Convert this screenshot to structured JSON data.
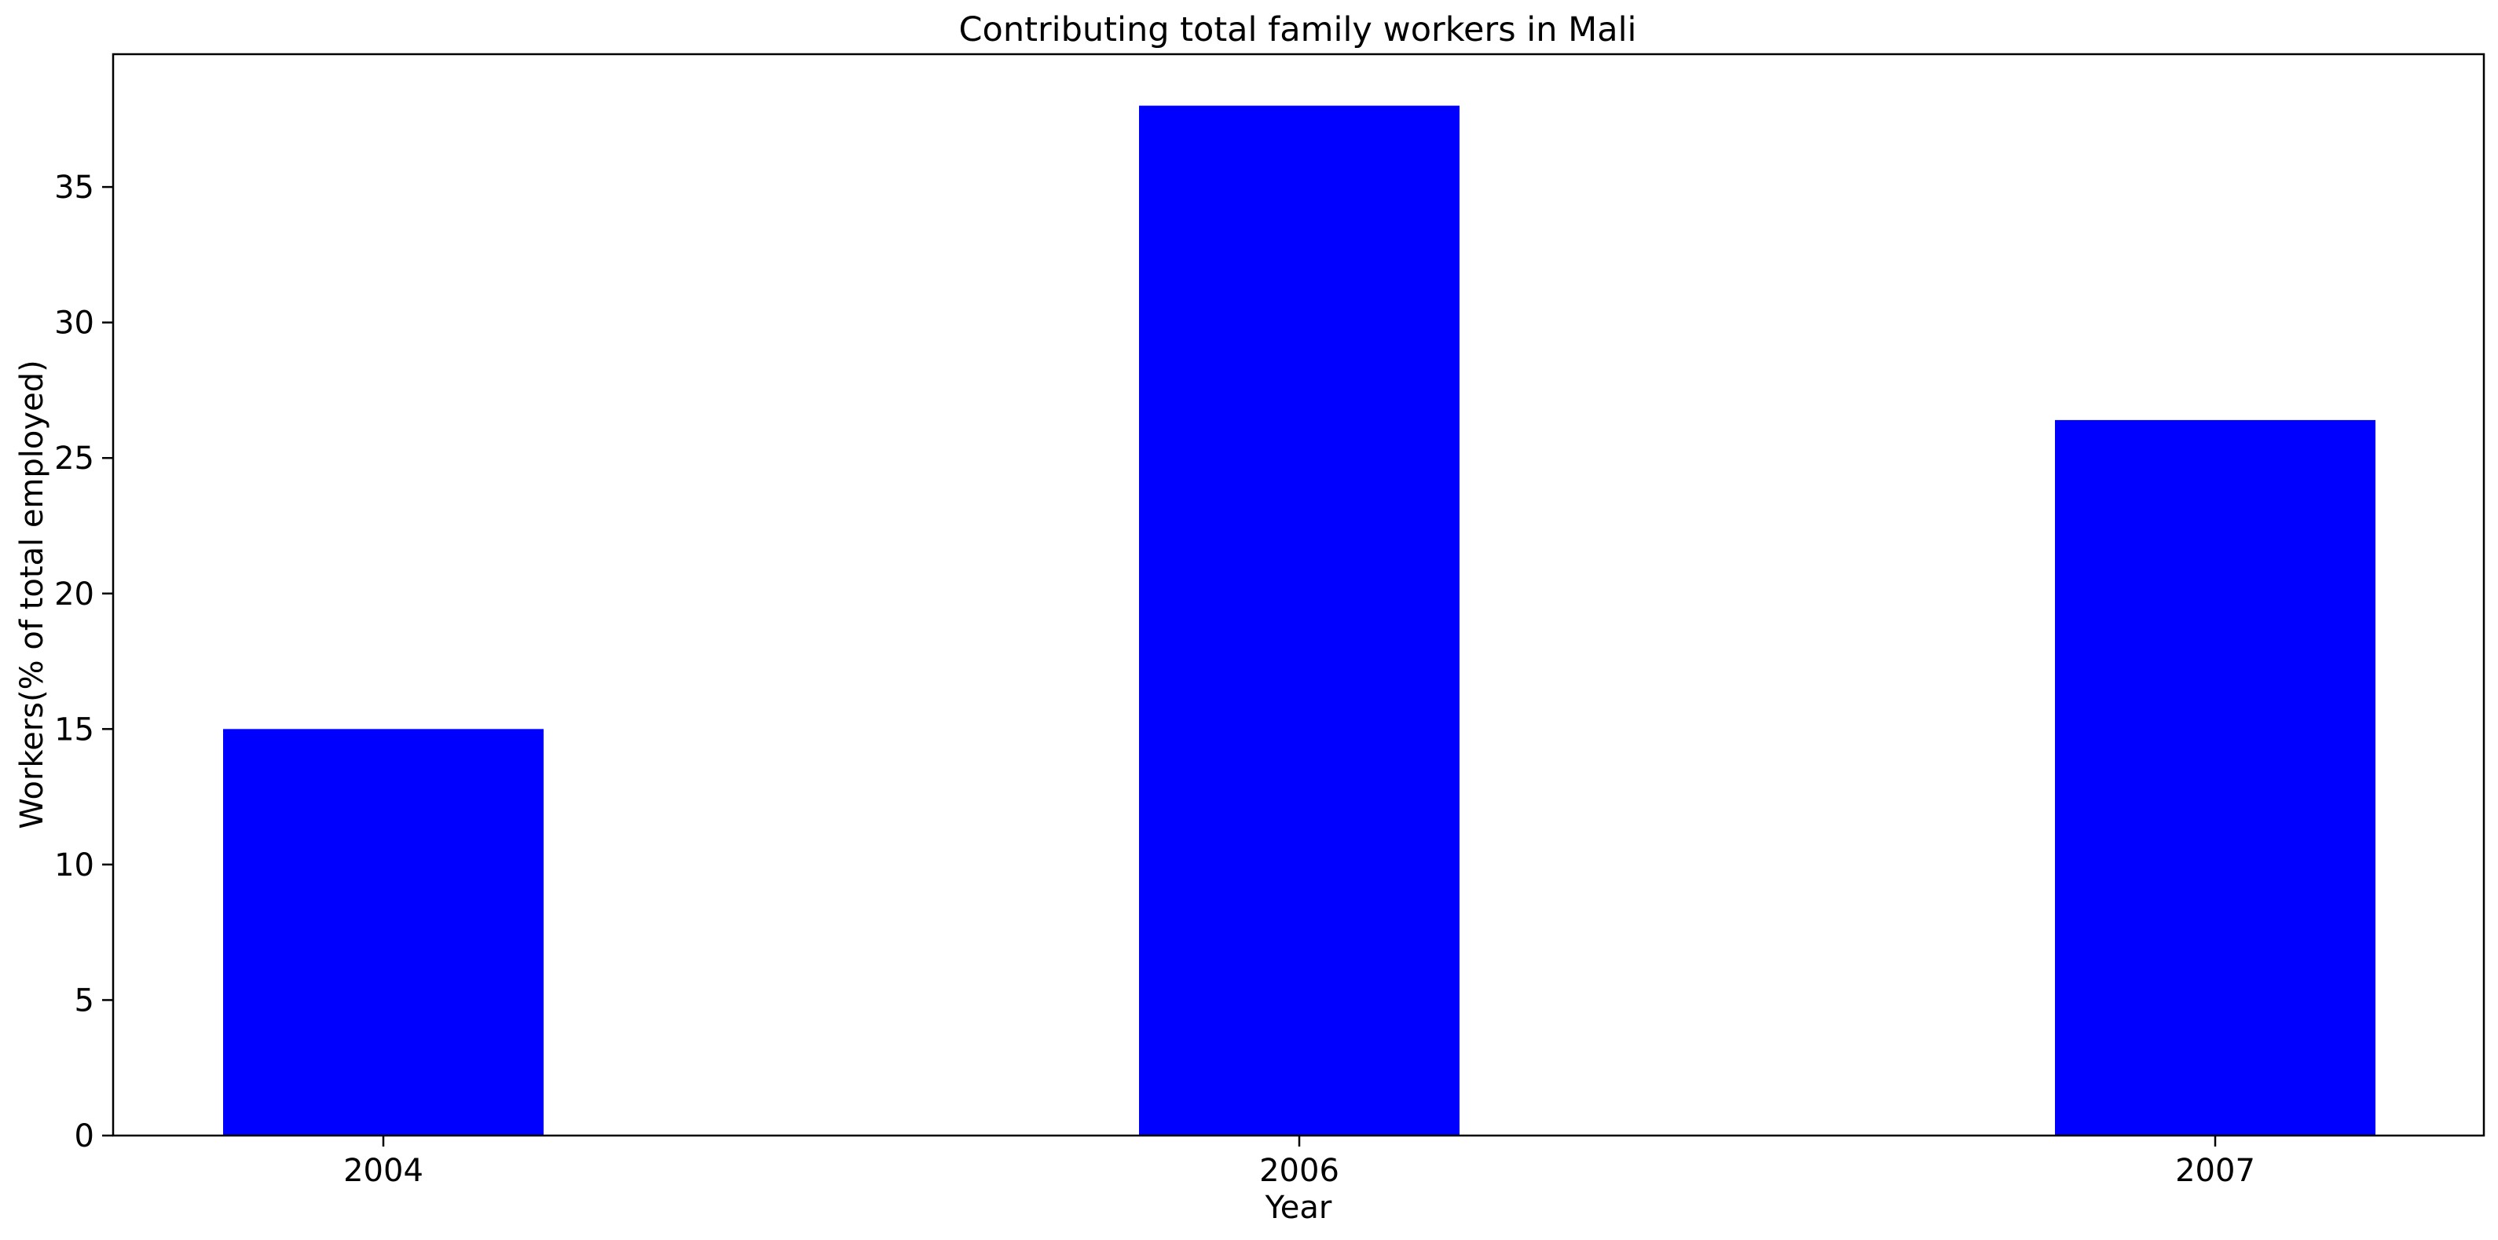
{
  "chart_data": {
    "type": "bar",
    "title": "Contributing total family workers in Mali",
    "xlabel": "Year",
    "ylabel": "Workers(% of total employed)",
    "categories": [
      "2004",
      "2006",
      "2007"
    ],
    "values": [
      15.0,
      38.0,
      26.4
    ],
    "ylim": [
      0,
      39.9
    ],
    "yticks": [
      0,
      5,
      10,
      15,
      20,
      25,
      30,
      35
    ],
    "bar_color": "#0000ff",
    "grid": false,
    "legend": "none"
  }
}
